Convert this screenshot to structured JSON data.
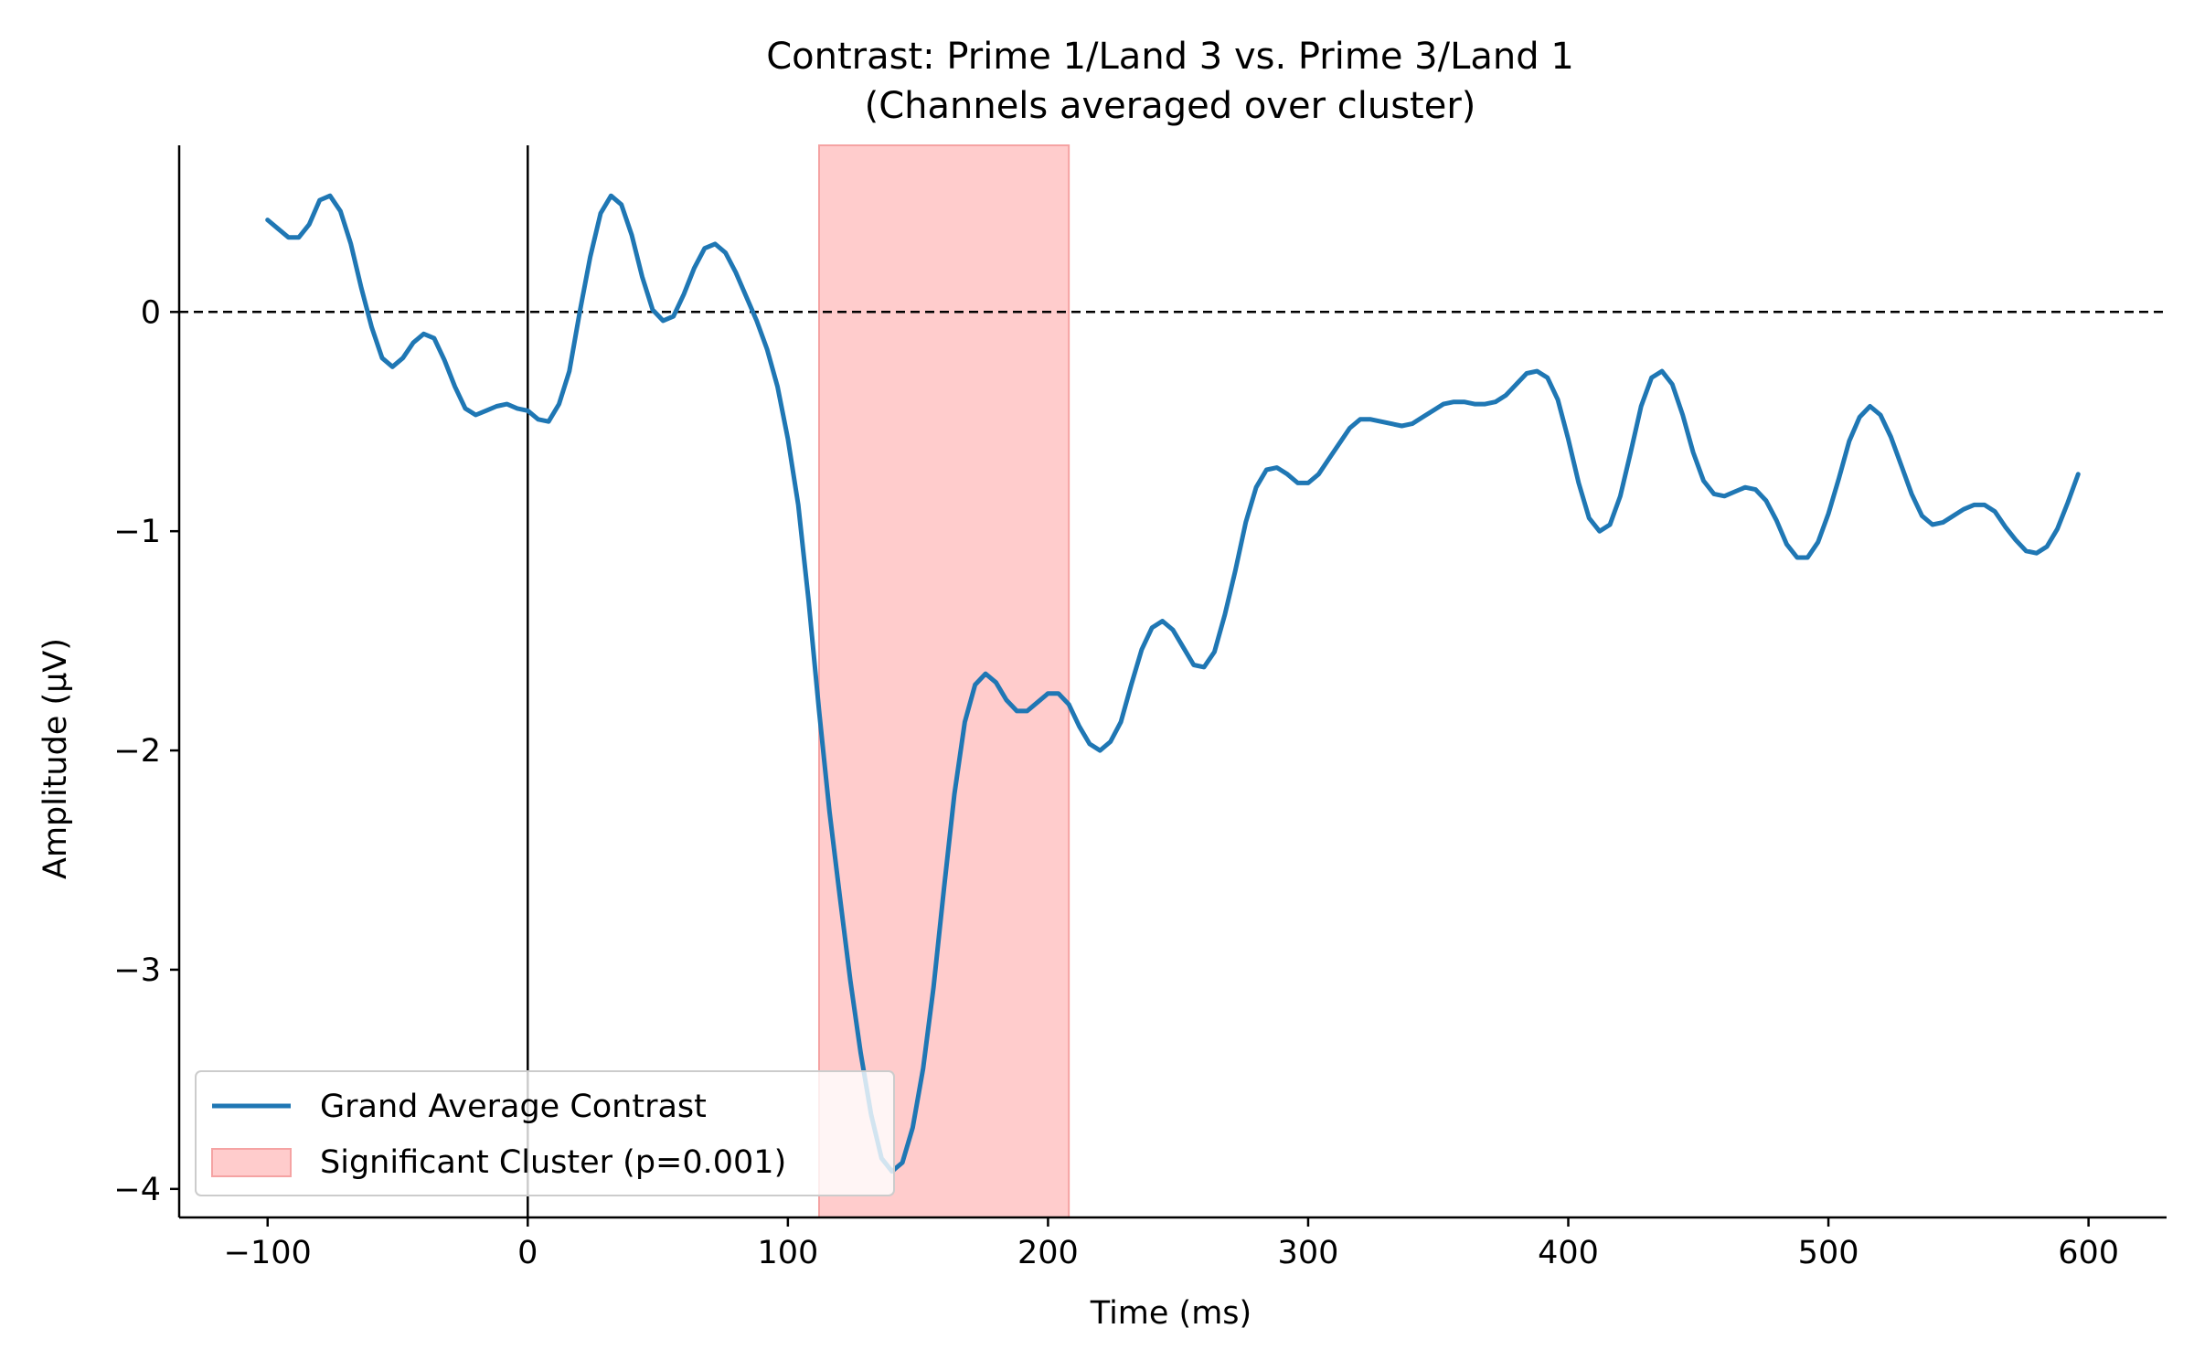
{
  "chart_data": {
    "type": "line",
    "title": "Contrast: Prime 1/Land 3 vs. Prime 3/Land 1",
    "subtitle": "(Channels averaged over cluster)",
    "xlabel": "Time (ms)",
    "ylabel": "Amplitude (μV)",
    "xlim": [
      -134,
      630
    ],
    "ylim": [
      -4.13,
      0.76
    ],
    "xticks": [
      -100,
      0,
      100,
      200,
      300,
      400,
      500,
      600
    ],
    "xtick_labels": [
      "−100",
      "0",
      "100",
      "200",
      "300",
      "400",
      "500",
      "600"
    ],
    "yticks": [
      0,
      -1,
      -2,
      -3,
      -4
    ],
    "ytick_labels": [
      "0",
      "−1",
      "−2",
      "−3",
      "−4"
    ],
    "grid": false,
    "legend_position": "lower-left",
    "reference_lines": {
      "zero_amplitude": {
        "y": 0,
        "style": "dashed"
      },
      "stimulus_onset": {
        "x": 0,
        "style": "solid"
      }
    },
    "shaded_region": {
      "name": "Significant Cluster (p=0.001)",
      "x_start": 112,
      "x_end": 208,
      "color": "#ffcccc",
      "edge_color": "#f5a3a3"
    },
    "series": [
      {
        "name": "Grand Average Contrast",
        "color": "#1f77b4",
        "x": [
          -100,
          -96,
          -92,
          -88,
          -84,
          -80,
          -76,
          -72,
          -68,
          -64,
          -60,
          -56,
          -52,
          -48,
          -44,
          -40,
          -36,
          -32,
          -28,
          -24,
          -20,
          -16,
          -12,
          -8,
          -4,
          0,
          4,
          8,
          12,
          16,
          20,
          24,
          28,
          32,
          36,
          40,
          44,
          48,
          52,
          56,
          60,
          64,
          68,
          72,
          76,
          80,
          84,
          88,
          92,
          96,
          100,
          104,
          108,
          112,
          116,
          120,
          124,
          128,
          132,
          136,
          140,
          144,
          148,
          152,
          156,
          160,
          164,
          168,
          172,
          176,
          180,
          184,
          188,
          192,
          196,
          200,
          204,
          208,
          212,
          216,
          220,
          224,
          228,
          232,
          236,
          240,
          244,
          248,
          252,
          256,
          260,
          264,
          268,
          272,
          276,
          280,
          284,
          288,
          292,
          296,
          300,
          304,
          308,
          312,
          316,
          320,
          324,
          328,
          332,
          336,
          340,
          344,
          348,
          352,
          356,
          360,
          364,
          368,
          372,
          376,
          380,
          384,
          388,
          392,
          396,
          400,
          404,
          408,
          412,
          416,
          420,
          424,
          428,
          432,
          436,
          440,
          444,
          448,
          452,
          456,
          460,
          464,
          468,
          472,
          476,
          480,
          484,
          488,
          492,
          496,
          500,
          504,
          508,
          512,
          516,
          520,
          524,
          528,
          532,
          536,
          540,
          544,
          548,
          552,
          556,
          560,
          564,
          568,
          572,
          576,
          580,
          584,
          588,
          592,
          596
        ],
        "values": [
          0.42,
          0.38,
          0.34,
          0.34,
          0.4,
          0.51,
          0.53,
          0.46,
          0.31,
          0.11,
          -0.07,
          -0.21,
          -0.25,
          -0.21,
          -0.14,
          -0.1,
          -0.12,
          -0.22,
          -0.34,
          -0.44,
          -0.47,
          -0.45,
          -0.43,
          -0.42,
          -0.44,
          -0.45,
          -0.49,
          -0.5,
          -0.42,
          -0.27,
          0.0,
          0.25,
          0.45,
          0.53,
          0.49,
          0.35,
          0.16,
          0.01,
          -0.04,
          -0.02,
          0.08,
          0.2,
          0.29,
          0.31,
          0.27,
          0.18,
          0.07,
          -0.04,
          -0.17,
          -0.34,
          -0.58,
          -0.88,
          -1.32,
          -1.82,
          -2.28,
          -2.67,
          -3.05,
          -3.38,
          -3.66,
          -3.86,
          -3.92,
          -3.88,
          -3.72,
          -3.45,
          -3.08,
          -2.63,
          -2.2,
          -1.87,
          -1.7,
          -1.65,
          -1.69,
          -1.77,
          -1.82,
          -1.82,
          -1.78,
          -1.74,
          -1.74,
          -1.79,
          -1.89,
          -1.97,
          -2.0,
          -1.96,
          -1.87,
          -1.7,
          -1.54,
          -1.44,
          -1.41,
          -1.45,
          -1.53,
          -1.61,
          -1.62,
          -1.55,
          -1.38,
          -1.18,
          -0.96,
          -0.8,
          -0.72,
          -0.71,
          -0.74,
          -0.78,
          -0.78,
          -0.74,
          -0.67,
          -0.6,
          -0.53,
          -0.49,
          -0.49,
          -0.5,
          -0.51,
          -0.52,
          -0.51,
          -0.48,
          -0.45,
          -0.42,
          -0.41,
          -0.41,
          -0.42,
          -0.42,
          -0.41,
          -0.38,
          -0.33,
          -0.28,
          -0.27,
          -0.3,
          -0.4,
          -0.58,
          -0.78,
          -0.94,
          -1.0,
          -0.97,
          -0.84,
          -0.64,
          -0.43,
          -0.3,
          -0.27,
          -0.33,
          -0.47,
          -0.64,
          -0.77,
          -0.83,
          -0.84,
          -0.82,
          -0.8,
          -0.81,
          -0.86,
          -0.95,
          -1.06,
          -1.12,
          -1.12,
          -1.05,
          -0.92,
          -0.76,
          -0.59,
          -0.48,
          -0.43,
          -0.47,
          -0.57,
          -0.7,
          -0.83,
          -0.93,
          -0.97,
          -0.96,
          -0.93,
          -0.9,
          -0.88,
          -0.88,
          -0.91,
          -0.98,
          -1.04,
          -1.09,
          -1.1,
          -1.07,
          -0.99,
          -0.87,
          -0.74
        ]
      }
    ]
  }
}
